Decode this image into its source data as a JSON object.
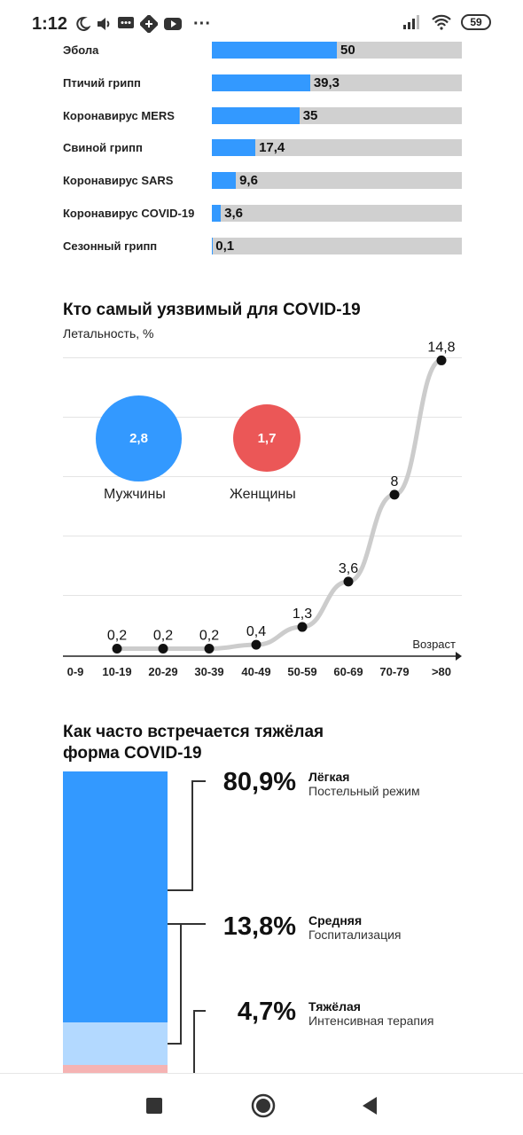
{
  "status_bar": {
    "time": "1:12",
    "battery": "59",
    "more": "···"
  },
  "chart_data": [
    {
      "type": "bar",
      "orientation": "horizontal",
      "categories": [
        "Эбола",
        "Птичий грипп",
        "Коронавирус MERS",
        "Свиной грипп",
        "Коронавирус SARS",
        "Коронавирус COVID-19",
        "Сезонный грипп"
      ],
      "values": [
        50,
        39.3,
        35,
        17.4,
        9.6,
        3.6,
        0.1
      ],
      "value_labels": [
        "50",
        "39,3",
        "35",
        "17,4",
        "9,6",
        "3,6",
        "0,1"
      ],
      "xlim": [
        0,
        100
      ],
      "colors": {
        "fill": "#3399ff",
        "track": "#d0d0d0"
      }
    },
    {
      "type": "line",
      "title": "Кто самый уязвимый для COVID-19",
      "ylabel": "Летальность, %",
      "xlabel": "Возраст",
      "categories": [
        "0-9",
        "10-19",
        "20-29",
        "30-39",
        "40-49",
        "50-59",
        "60-69",
        "70-79",
        ">80"
      ],
      "values": [
        null,
        0.2,
        0.2,
        0.2,
        0.4,
        1.3,
        3.6,
        8,
        14.8
      ],
      "value_labels": [
        "",
        "0,2",
        "0,2",
        "0,2",
        "0,4",
        "1,3",
        "3,6",
        "8",
        "14,8"
      ],
      "ylim": [
        0,
        15
      ],
      "grid": true,
      "line_color": "#cccccc",
      "bubbles": [
        {
          "name": "Мужчины",
          "value": 2.8,
          "value_label": "2,8",
          "color": "#3399ff"
        },
        {
          "name": "Женщины",
          "value": 1.7,
          "value_label": "1,7",
          "color": "#eb5757"
        }
      ]
    },
    {
      "type": "bar",
      "stacked": true,
      "title": "Как часто встречается тяжёлая форма COVID-19",
      "series": [
        {
          "name": "Лёгкая",
          "description": "Постельный режим",
          "value": 80.9,
          "value_label": "80,9%",
          "color": "#3399ff"
        },
        {
          "name": "Средняя",
          "description": "Госпитализация",
          "value": 13.8,
          "value_label": "13,8%",
          "color": "#b3d9ff"
        },
        {
          "name": "Тяжёлая",
          "description": "Интенсивная терапия",
          "value": 4.7,
          "value_label": "4,7%",
          "color": "#f5b3b3"
        }
      ]
    }
  ]
}
